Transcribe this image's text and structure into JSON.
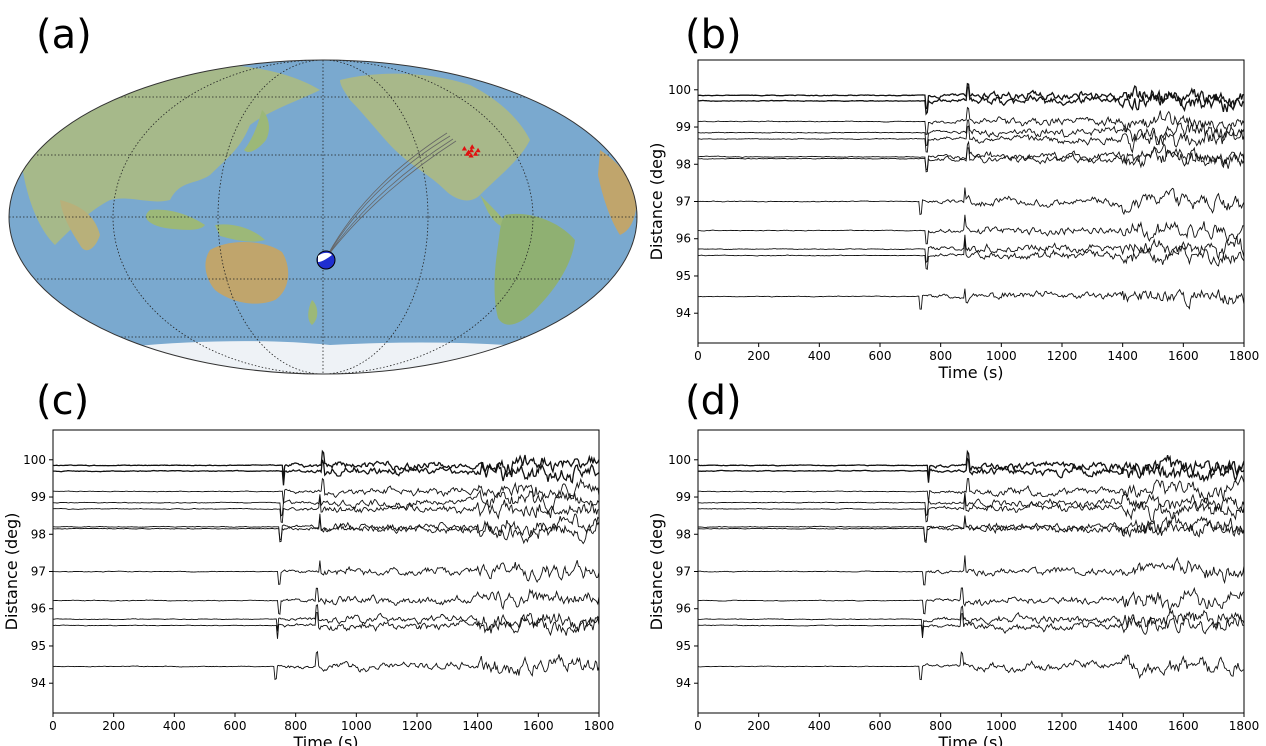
{
  "panels": {
    "a": "(a)",
    "b": "(b)",
    "c": "(c)",
    "d": "(d)"
  },
  "map": {
    "projection": "mollweide",
    "center_lon": 180,
    "ocean_color": "#7aa9cf",
    "land_color": "#9cb878",
    "event_marker": {
      "lon": -172,
      "lat": -18,
      "color": "#1f2fd0"
    },
    "stations_lon": [
      -94,
      -92,
      -90,
      -88,
      -86,
      -91,
      -89,
      -93
    ],
    "stations_lat": [
      39,
      37,
      38,
      36,
      38,
      35,
      40,
      36
    ],
    "station_color": "#e01010",
    "gridlines": "dotted"
  },
  "chart_data": [
    {
      "type": "line",
      "panel": "b",
      "xlabel": "Time (s)",
      "ylabel": "Distance (deg)",
      "xlim": [
        0,
        1800
      ],
      "ylim": [
        93.2,
        100.8
      ],
      "xticks": [
        0,
        200,
        400,
        600,
        800,
        1000,
        1200,
        1400,
        1600,
        1800
      ],
      "yticks": [
        94,
        95,
        96,
        97,
        98,
        99,
        100
      ],
      "trace_distances": [
        94.45,
        95.55,
        95.72,
        96.22,
        97.0,
        98.15,
        98.2,
        98.68,
        98.85,
        99.15,
        99.7,
        99.85
      ],
      "first_arrival_s": [
        735,
        755,
        755,
        755,
        735,
        755,
        755,
        755,
        755,
        755,
        755,
        755
      ],
      "secondary_arrival_s": [
        880,
        880,
        880,
        880,
        880,
        890,
        890,
        890,
        890,
        890,
        890,
        890
      ]
    },
    {
      "type": "line",
      "panel": "c",
      "xlabel": "Time (s)",
      "ylabel": "Distance (deg)",
      "xlim": [
        0,
        1800
      ],
      "ylim": [
        93.2,
        100.8
      ],
      "xticks": [
        0,
        200,
        400,
        600,
        800,
        1000,
        1200,
        1400,
        1600,
        1800
      ],
      "yticks": [
        94,
        95,
        96,
        97,
        98,
        99,
        100
      ],
      "trace_distances": [
        94.45,
        95.55,
        95.72,
        96.22,
        97.0,
        98.15,
        98.2,
        98.68,
        98.85,
        99.15,
        99.7,
        99.85
      ],
      "first_arrival_s": [
        735,
        740,
        740,
        745,
        745,
        750,
        750,
        755,
        755,
        760,
        760,
        760
      ],
      "secondary_arrival_s": [
        870,
        870,
        870,
        870,
        880,
        880,
        880,
        880,
        880,
        890,
        890,
        890
      ]
    },
    {
      "type": "line",
      "panel": "d",
      "xlabel": "Time (s)",
      "ylabel": "Distance (deg)",
      "xlim": [
        0,
        1800
      ],
      "ylim": [
        93.2,
        100.8
      ],
      "xticks": [
        0,
        200,
        400,
        600,
        800,
        1000,
        1200,
        1400,
        1600,
        1800
      ],
      "yticks": [
        94,
        95,
        96,
        97,
        98,
        99,
        100
      ],
      "trace_distances": [
        94.45,
        95.55,
        95.72,
        96.22,
        97.0,
        98.15,
        98.2,
        98.68,
        98.85,
        99.15,
        99.7,
        99.85
      ],
      "first_arrival_s": [
        735,
        740,
        740,
        745,
        745,
        750,
        750,
        755,
        755,
        760,
        760,
        760
      ],
      "secondary_arrival_s": [
        870,
        870,
        870,
        870,
        880,
        880,
        880,
        880,
        880,
        890,
        890,
        890
      ]
    }
  ]
}
